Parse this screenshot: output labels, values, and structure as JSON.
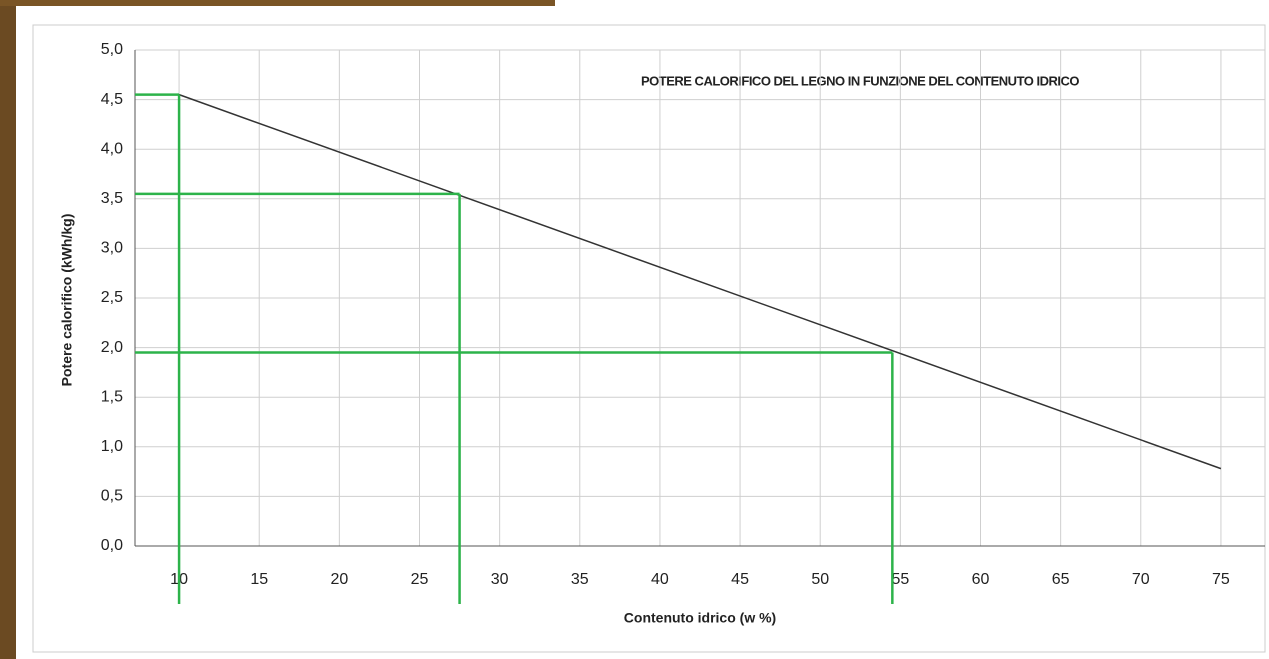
{
  "chart_data": {
    "type": "line",
    "title": "POTERE CALORIFICO DEL LEGNO IN FUNZIONE DEL CONTENUTO IDRICO",
    "x_label": "Contenuto idrico (w %)",
    "y_label": "Potere calorifico (kWh/kg)",
    "x": [
      10,
      75
    ],
    "series": [
      {
        "color": "#333333",
        "values": [
          4.55,
          0.78
        ]
      }
    ],
    "guides": {
      "color": "#2db34a",
      "points": [
        {
          "x": 10,
          "y": 4.55
        },
        {
          "x": 27.5,
          "y": 3.55
        },
        {
          "x": 54.5,
          "y": 1.95
        }
      ]
    },
    "xlim": [
      7.25,
      77.75
    ],
    "ylim": [
      0,
      5
    ],
    "xticks": [
      10,
      15,
      20,
      25,
      30,
      35,
      40,
      45,
      50,
      55,
      60,
      65,
      70,
      75
    ],
    "yticks": [
      {
        "value": 0,
        "label": "0,0"
      },
      {
        "value": 0.5,
        "label": "0,5"
      },
      {
        "value": 1,
        "label": "1,0"
      },
      {
        "value": 1.5,
        "label": "1,5"
      },
      {
        "value": 2,
        "label": "2,0"
      },
      {
        "value": 2.5,
        "label": "2,5"
      },
      {
        "value": 3,
        "label": "3,0"
      },
      {
        "value": 3.5,
        "label": "3,5"
      },
      {
        "value": 4,
        "label": "4,0"
      },
      {
        "value": 4.5,
        "label": "4,5"
      },
      {
        "value": 5,
        "label": "5,0"
      }
    ],
    "grid": true
  }
}
